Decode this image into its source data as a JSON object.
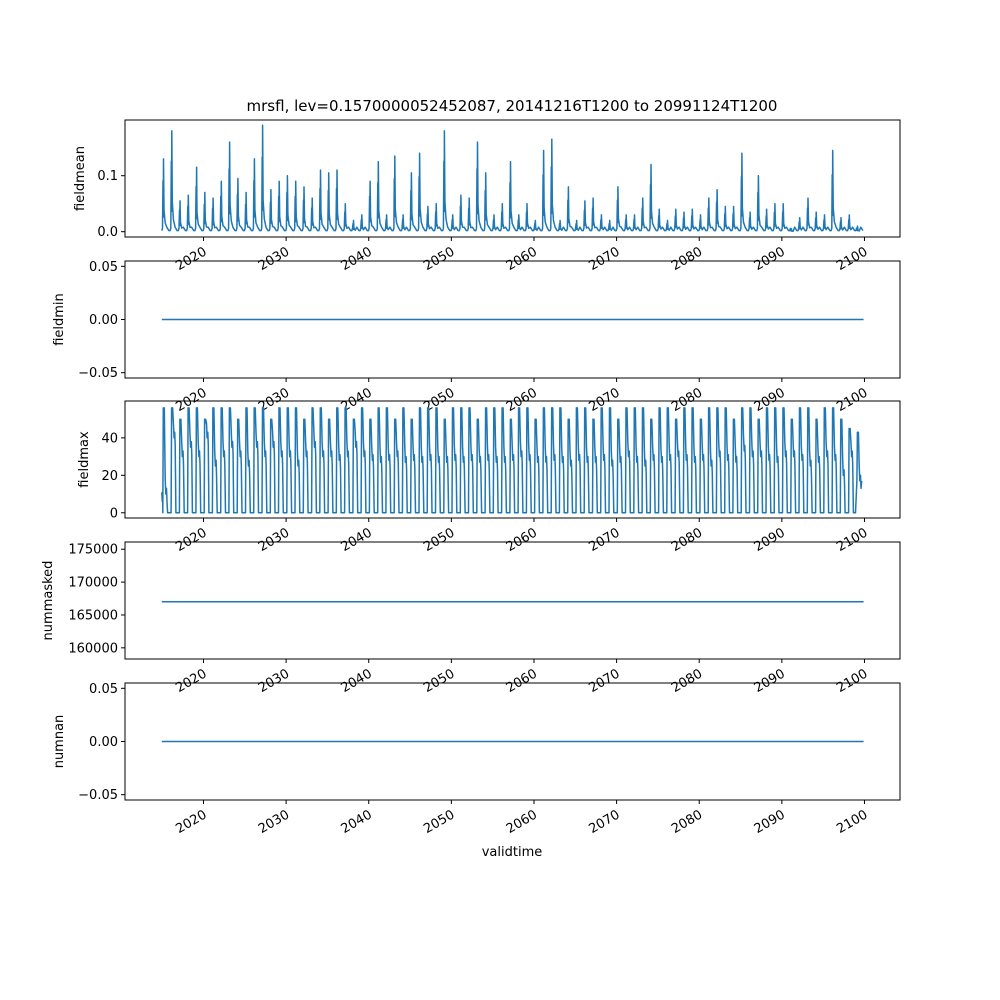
{
  "chart_data": {
    "type": "line",
    "title": "mrsfl, lev=0.1570000052452087, 20141216T1200 to 20991124T1200",
    "xlabel": "validtime",
    "xlim": [
      2010.5,
      2104.3
    ],
    "x_ticks": [
      "2020",
      "2030",
      "2040",
      "2050",
      "2060",
      "2070",
      "2080",
      "2090",
      "2100"
    ],
    "x_tick_values": [
      2020,
      2030,
      2040,
      2050,
      2060,
      2070,
      2080,
      2090,
      2100
    ],
    "data_start": 2014.96,
    "data_end": 2099.9,
    "line_color": "#1f77b4",
    "panels": [
      {
        "ylabel": "fieldmean",
        "ylim": [
          -0.0095,
          0.1995
        ],
        "y_ticks": [
          "0.0",
          "0.1"
        ],
        "y_tick_values": [
          0.0,
          0.1
        ],
        "kind": "annual_spikes",
        "baseline": 0.002,
        "annual_peaks": [
          0.13,
          0.18,
          0.055,
          0.065,
          0.115,
          0.07,
          0.06,
          0.09,
          0.16,
          0.095,
          0.07,
          0.13,
          0.19,
          0.075,
          0.09,
          0.1,
          0.09,
          0.08,
          0.06,
          0.11,
          0.105,
          0.11,
          0.05,
          0.02,
          0.03,
          0.09,
          0.125,
          0.03,
          0.135,
          0.03,
          0.105,
          0.14,
          0.045,
          0.05,
          0.18,
          0.03,
          0.065,
          0.06,
          0.16,
          0.105,
          0.03,
          0.05,
          0.125,
          0.03,
          0.05,
          0.02,
          0.145,
          0.165,
          0.02,
          0.08,
          0.02,
          0.055,
          0.06,
          0.03,
          0.02,
          0.08,
          0.03,
          0.03,
          0.06,
          0.12,
          0.04,
          0.02,
          0.04,
          0.035,
          0.04,
          0.03,
          0.06,
          0.075,
          0.045,
          0.045,
          0.14,
          0.035,
          0.1,
          0.04,
          0.05,
          0.05,
          0.005,
          0.025,
          0.06,
          0.035,
          0.03,
          0.145,
          0.025,
          0.03,
          0.01
        ]
      },
      {
        "ylabel": "fieldmin",
        "ylim": [
          -0.055,
          0.055
        ],
        "y_ticks": [
          "−0.05",
          "0.00",
          "0.05"
        ],
        "y_tick_values": [
          -0.05,
          0.0,
          0.05
        ],
        "kind": "constant",
        "value": 0.0
      },
      {
        "ylabel": "fieldmax",
        "ylim": [
          -2.8,
          59.7
        ],
        "y_ticks": [
          "0",
          "20",
          "40"
        ],
        "y_tick_values": [
          0,
          20,
          40
        ],
        "kind": "annual_cycle",
        "annual_peaks": [
          56,
          56,
          50,
          56,
          56,
          50,
          56,
          56,
          56,
          50,
          56,
          56,
          56,
          50,
          56,
          56,
          56,
          50,
          56,
          56,
          50,
          56,
          56,
          50,
          56,
          50,
          56,
          56,
          50,
          56,
          50,
          56,
          56,
          56,
          50,
          56,
          56,
          56,
          50,
          56,
          56,
          56,
          50,
          56,
          56,
          50,
          56,
          56,
          56,
          50,
          56,
          56,
          50,
          56,
          56,
          50,
          56,
          56,
          56,
          50,
          56,
          56,
          50,
          56,
          56,
          50,
          56,
          56,
          56,
          50,
          56,
          56,
          50,
          56,
          56,
          56,
          50,
          56,
          56,
          50,
          56,
          56,
          50,
          45,
          43
        ],
        "annual_mid": [
          10,
          40,
          30,
          35,
          30,
          40,
          25,
          30,
          35,
          30,
          25,
          35,
          30,
          35,
          30,
          30,
          25,
          30,
          35,
          30,
          30,
          28,
          30,
          35,
          30,
          28,
          27,
          28,
          30,
          27,
          28,
          27,
          28,
          27,
          27,
          28,
          27,
          28,
          27,
          28,
          27,
          27,
          28,
          30,
          28,
          27,
          27,
          28,
          27,
          25,
          28,
          27,
          27,
          28,
          25,
          27,
          30,
          27,
          25,
          28,
          27,
          28,
          30,
          28,
          27,
          28,
          25,
          30,
          28,
          27,
          33,
          30,
          30,
          28,
          27,
          30,
          30,
          28,
          25,
          27,
          30,
          28,
          20,
          30,
          17
        ],
        "annual_min": [
          0,
          0,
          0,
          0,
          0,
          0,
          0,
          0,
          0,
          0,
          0,
          0,
          0,
          0,
          0,
          0,
          0,
          0,
          0,
          0,
          0,
          0,
          0,
          0,
          0,
          0,
          0,
          0,
          0,
          0,
          0,
          0,
          0,
          0,
          0,
          0,
          0,
          0,
          0,
          0,
          0,
          0,
          0,
          0,
          0,
          0,
          0,
          0,
          0,
          0,
          0,
          0,
          0,
          0,
          0,
          0,
          0,
          0,
          0,
          0,
          0,
          0,
          0,
          0,
          0,
          0,
          0,
          0,
          0,
          0,
          0,
          0,
          0,
          0,
          0,
          0,
          0,
          0,
          0,
          0,
          0,
          0,
          0,
          0,
          17
        ]
      },
      {
        "ylabel": "nummasked",
        "ylim": [
          158300,
          176100
        ],
        "y_ticks": [
          "160000",
          "165000",
          "170000",
          "175000"
        ],
        "y_tick_values": [
          160000,
          165000,
          170000,
          175000
        ],
        "kind": "constant",
        "value": 167000
      },
      {
        "ylabel": "numnan",
        "ylim": [
          -0.055,
          0.055
        ],
        "y_ticks": [
          "−0.05",
          "0.00",
          "0.05"
        ],
        "y_tick_values": [
          -0.05,
          0.0,
          0.05
        ],
        "kind": "constant",
        "value": 0.0
      }
    ]
  }
}
